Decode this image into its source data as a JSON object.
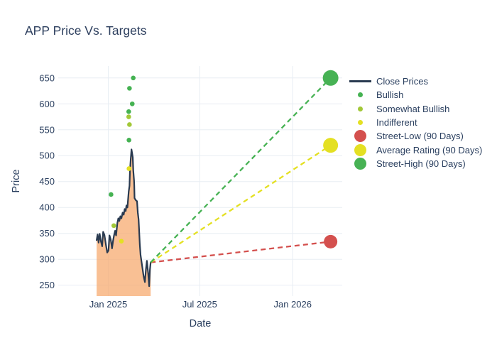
{
  "title": "APP Price Vs. Targets",
  "colors": {
    "text": "#2a3f5f",
    "grid": "#e8edf4",
    "close_line": "#293a50",
    "close_fill": "#f7a76b",
    "bullish": "#45b252",
    "somewhat_bullish": "#a2c838",
    "indifferent": "#e4e023",
    "street_low": "#d4504e",
    "average_rating": "#e4e023",
    "street_high": "#47b254"
  },
  "legend": {
    "items": [
      {
        "label": "Close Prices",
        "swatch": "line",
        "color": "#293a50"
      },
      {
        "label": "Bullish",
        "swatch": "dot",
        "color": "#45b252"
      },
      {
        "label": "Somewhat Bullish",
        "swatch": "dot",
        "color": "#a2c838"
      },
      {
        "label": "Indifferent",
        "swatch": "dot",
        "color": "#e4e023"
      },
      {
        "label": "Street-Low (90 Days)",
        "swatch": "circle",
        "color": "#d4504e"
      },
      {
        "label": "Average Rating (90 Days)",
        "swatch": "circle",
        "color": "#e4e023"
      },
      {
        "label": "Street-High (90 Days)",
        "swatch": "circle",
        "color": "#47b254"
      }
    ]
  },
  "chart_data": {
    "type": "line",
    "title": "APP Price Vs. Targets",
    "xlabel": "Date",
    "ylabel": "Price",
    "grid": true,
    "legend_position": "right",
    "x_ticks": [
      {
        "label": "Jan 2025",
        "day": 0
      },
      {
        "label": "Jul 2025",
        "day": 181
      },
      {
        "label": "Jan 2026",
        "day": 365
      }
    ],
    "y_ticks": [
      250,
      300,
      350,
      400,
      450,
      500,
      550,
      600,
      650
    ],
    "x_range_days": [
      -99,
      463
    ],
    "y_range": [
      229,
      673
    ],
    "close_prices": {
      "name": "Close Prices",
      "x_days": [
        -23,
        -21,
        -19,
        -17,
        -14.5,
        -12,
        -10,
        -7.5,
        -4.5,
        -2,
        0.5,
        2.5,
        5,
        7.5,
        9.5,
        11.5,
        13.5,
        15.5,
        18,
        20,
        22,
        24,
        26,
        28.5,
        30.5,
        32.5,
        34.5,
        36,
        38,
        40.5,
        42,
        43,
        44.5,
        46,
        47.5,
        48.5,
        49.5,
        51,
        51.5,
        52,
        54.5,
        57,
        58.5,
        60,
        61.5,
        62.5,
        64,
        67,
        70,
        72.5,
        74.5,
        76.5,
        79,
        81,
        82.5,
        84
      ],
      "values": [
        337,
        348,
        332,
        349,
        335,
        325,
        353,
        347,
        327,
        313,
        317,
        346,
        338,
        321,
        335,
        346,
        355,
        346,
        370,
        379,
        374,
        383,
        379,
        390,
        386,
        397,
        393,
        404,
        400,
        431,
        442,
        472,
        493,
        512,
        503,
        497,
        472,
        452,
        442,
        418,
        414,
        412,
        390,
        377,
        349,
        329,
        308,
        288,
        267,
        256,
        280,
        297,
        273,
        248,
        280,
        294
      ]
    },
    "ratings": [
      {
        "day": 5.5,
        "price": 425,
        "rating": "bullish"
      },
      {
        "day": 11,
        "price": 365,
        "rating": "somewhat_bullish"
      },
      {
        "day": 26,
        "price": 335,
        "rating": "indifferent"
      },
      {
        "day": 40.5,
        "price": 585,
        "rating": "bullish"
      },
      {
        "day": 40.5,
        "price": 575,
        "rating": "somewhat_bullish"
      },
      {
        "day": 41,
        "price": 475,
        "rating": "indifferent"
      },
      {
        "day": 41,
        "price": 530,
        "rating": "bullish"
      },
      {
        "day": 42,
        "price": 560,
        "rating": "somewhat_bullish"
      },
      {
        "day": 42,
        "price": 630,
        "rating": "bullish"
      },
      {
        "day": 47.5,
        "price": 600,
        "rating": "bullish"
      },
      {
        "day": 49.5,
        "price": 650,
        "rating": "bullish"
      }
    ],
    "last_close": {
      "day": 84,
      "price": 294
    },
    "targets": {
      "day": 440,
      "street_low": 334,
      "average_rating": 520,
      "street_high": 650
    }
  }
}
